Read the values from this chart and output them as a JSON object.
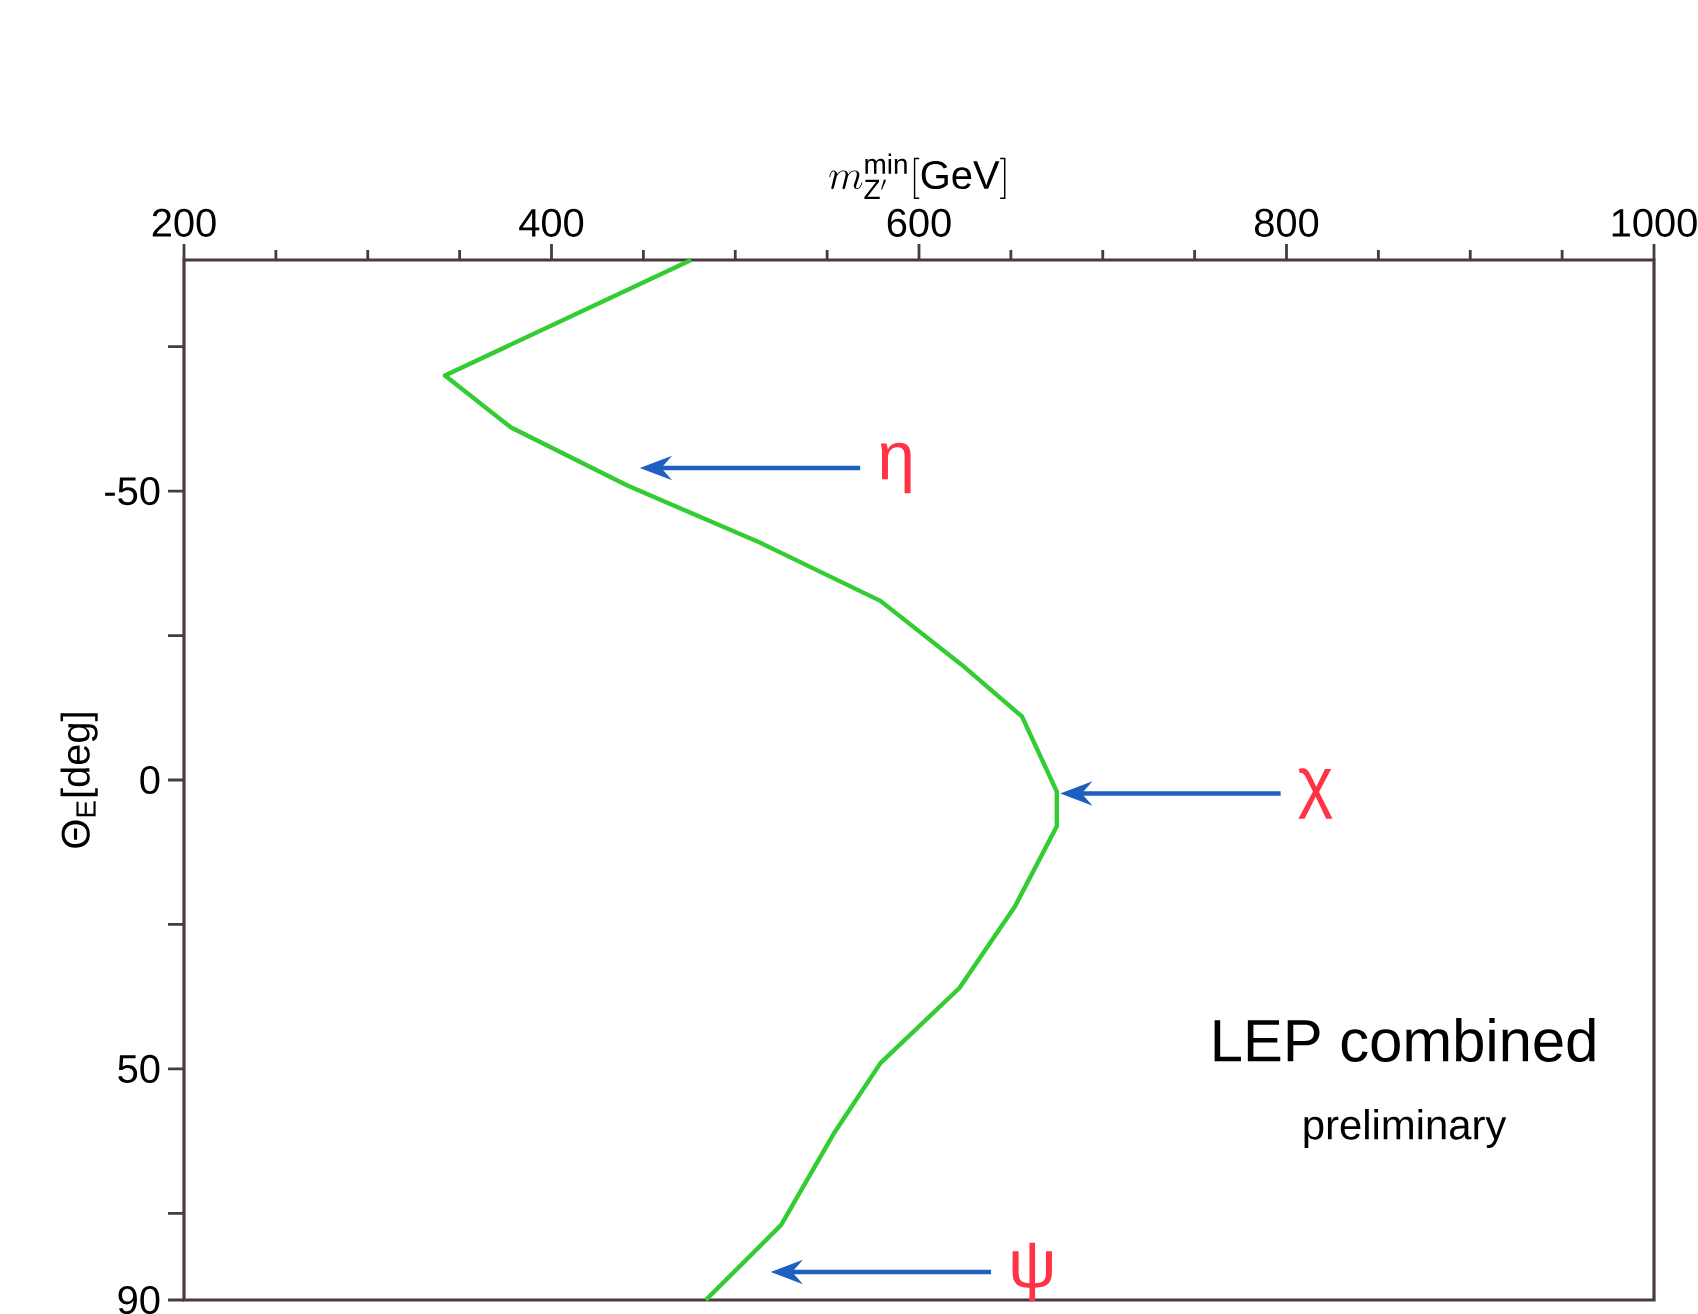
{
  "chart_data": {
    "type": "line",
    "orientation": "horizontal",
    "xlabel": "m^{\\mathrm{min}}_{\\mathrm{Z'}}[\\mathrm{GeV}]",
    "ylabel": "Θ$_{E}$[deg]",
    "annotations": [
      "LEP combined",
      "preliminary",
      "η",
      "χ",
      "ψ"
    ],
    "x": [
      -90,
      -70,
      -61,
      -51,
      -41,
      -31,
      -20,
      -11,
      2,
      8,
      22,
      36,
      49,
      61,
      77,
      90
    ],
    "series": [
      {
        "color": "#33cc33",
        "values": [
          476,
          342,
          378,
          441,
          514,
          579,
          623,
          656,
          675,
          675,
          652,
          622,
          579,
          554,
          525,
          484
        ]
      }
    ],
    "xlim": [
      200,
      1000
    ],
    "ylim": [
      90,
      -90
    ],
    "xticks": [
      200,
      400,
      600,
      800,
      1000
    ],
    "yticks": [
      {
        "value": -75,
        "label": null
      },
      -50,
      {
        "value": -25,
        "label": null
      },
      0,
      {
        "value": 25,
        "label": null
      },
      50,
      {
        "value": 75,
        "label": null
      },
      90
    ],
    "line_style": "solid"
  }
}
